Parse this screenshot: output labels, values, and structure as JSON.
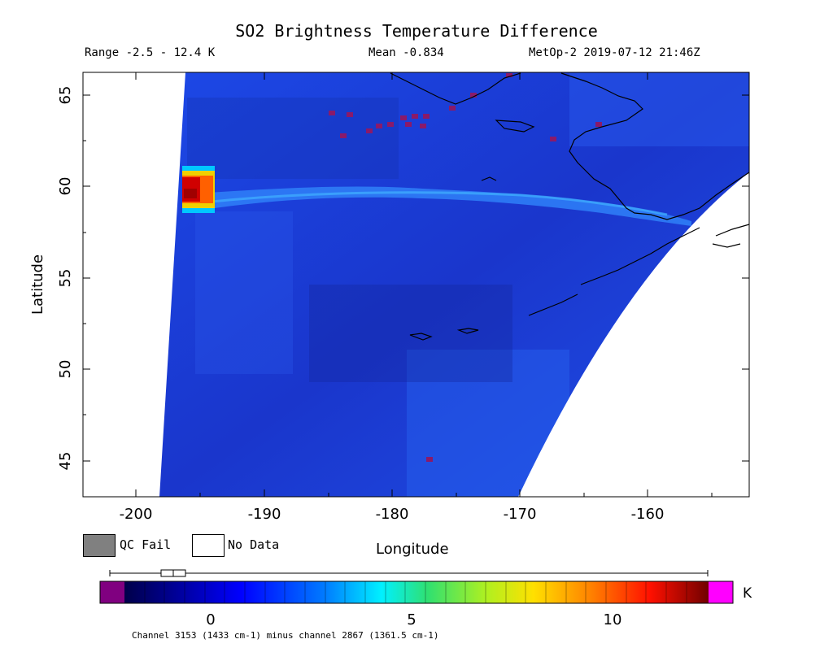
{
  "header": {
    "title": "SO2 Brightness Temperature Difference",
    "range": "Range -2.5 - 12.4 K",
    "mean": "Mean -0.834",
    "satellite_time": "MetOp-2 2019-07-12 21:46Z"
  },
  "map": {
    "x_axis_label": "Longitude",
    "y_axis_label": "Latitude",
    "x_ticks": [
      "-200",
      "-190",
      "-180",
      "-170",
      "-160"
    ],
    "y_ticks": [
      "45",
      "50",
      "55",
      "60",
      "65"
    ],
    "lon_range": [
      -204,
      -152
    ],
    "lat_range": [
      43,
      66
    ]
  },
  "legend": {
    "qc_fail_label": "QC Fail",
    "no_data_label": "No Data",
    "qc_fail_color": "#808080",
    "no_data_color": "#ffffff"
  },
  "colorbar": {
    "ticks": [
      "0",
      "5",
      "10"
    ],
    "tick_values": [
      0,
      5,
      10
    ],
    "range": [
      -2.5,
      12.4
    ],
    "unit": "K",
    "under_color": "#800080",
    "over_color": "#ff00ff"
  },
  "caption": "Channel 3153 (1433 cm-1) minus channel 2867 (1361.5 cm-1)",
  "colors": {
    "background_field": "#1a3ed8",
    "plume": "#2a6cf0",
    "hotspot": "#c00000"
  }
}
